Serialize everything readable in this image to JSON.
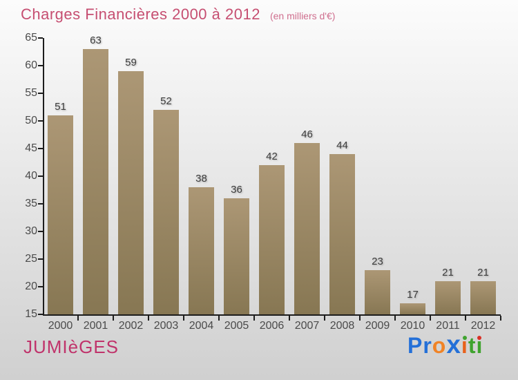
{
  "header": {
    "title": "Charges Financières 2000 à 2012",
    "subtitle": "(en milliers d'€)"
  },
  "chart_data": {
    "type": "bar",
    "title": "Charges Financières 2000 à 2012",
    "unit_label": "(en milliers d'€)",
    "categories": [
      "2000",
      "2001",
      "2002",
      "2003",
      "2004",
      "2005",
      "2006",
      "2007",
      "2008",
      "2009",
      "2010",
      "2011",
      "2012"
    ],
    "values": [
      51,
      63,
      59,
      52,
      38,
      36,
      42,
      46,
      44,
      23,
      17,
      21,
      21
    ],
    "xlabel": "",
    "ylabel": "",
    "ylim": [
      15,
      65
    ],
    "yticks": [
      65,
      60,
      55,
      50,
      45,
      40,
      35,
      30,
      25,
      20,
      15
    ],
    "grid": false,
    "legend": null,
    "value_labels_shown": true,
    "bar_gradient_top": "#ac9775",
    "bar_gradient_bottom": "#877753"
  },
  "footer": {
    "org_name": "JUMIèGES",
    "brand_logo": {
      "name": "Proxiti",
      "letters": [
        {
          "ch": "P",
          "color": "#2470d8"
        },
        {
          "ch": "r",
          "color": "#2470d8"
        },
        {
          "ch": "o",
          "color": "#f08326"
        },
        {
          "ch": "x",
          "color": "#2470d8",
          "big": true
        },
        {
          "ch": "i",
          "color": "#e8611c",
          "dot": "#3fa32e"
        },
        {
          "ch": "t",
          "color": "#3fa32e"
        },
        {
          "ch": "i",
          "color": "#3fa32e",
          "dot": "#d93025"
        }
      ]
    }
  },
  "colors": {
    "title": "#c64e71",
    "subtitle": "#cf6e8e",
    "org_name": "#c0336b",
    "axis": "#1c1c1c",
    "tick_label": "#4a4a4a",
    "value_label": "#3c3c3c",
    "background_top": "#fcfcfc",
    "background_bottom": "#d0d0d0"
  }
}
